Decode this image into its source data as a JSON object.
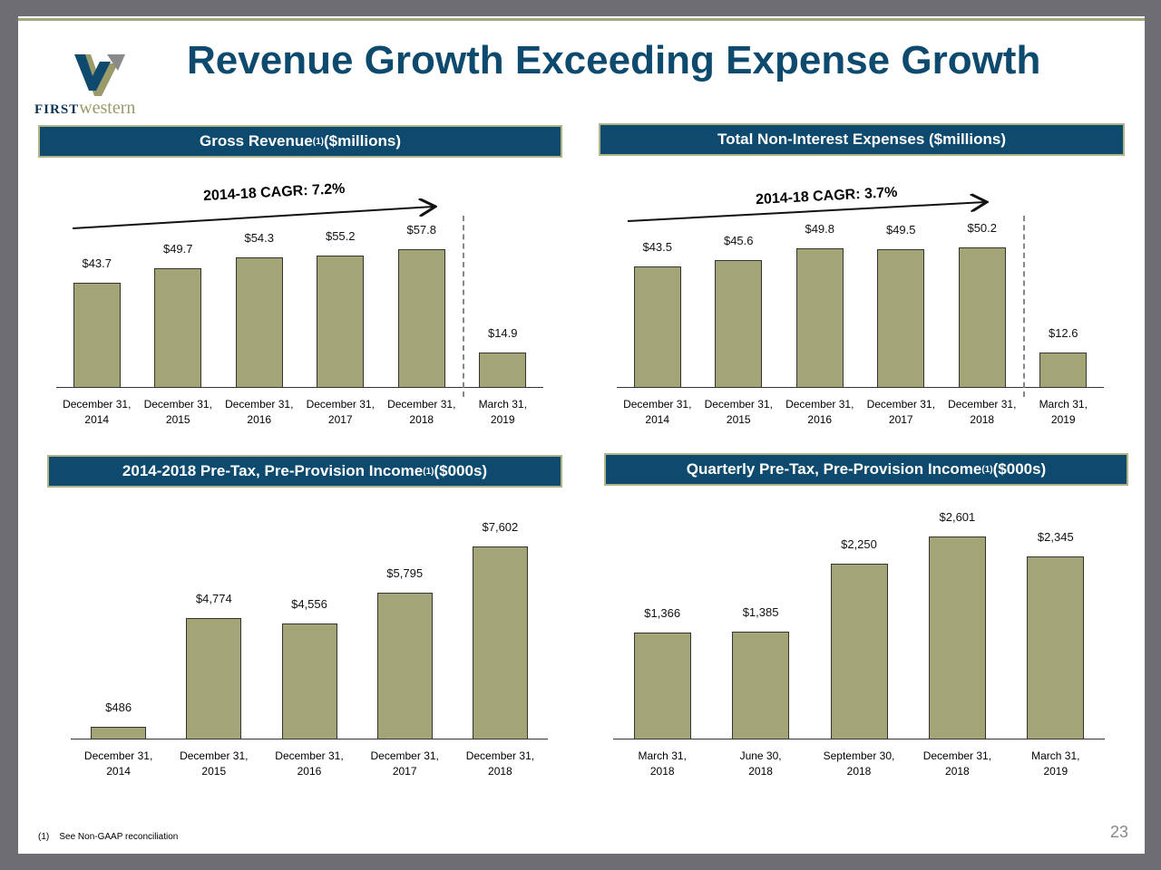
{
  "title": "Revenue Growth Exceeding Expense Growth",
  "logo": {
    "text_first": "FIRST",
    "text_western": "western"
  },
  "footnote": {
    "marker": "(1)",
    "text": "See Non-GAAP reconciliation"
  },
  "page_number": "23",
  "colors": {
    "bar": "#a3a577",
    "header": "#0d4a6e",
    "title": "#0d4a6e"
  },
  "chart_data": [
    {
      "type": "bar",
      "title": "Gross Revenue",
      "title_sup": "(1)",
      "title_suffix": " ($millions)",
      "annotation": "2014-18 CAGR: 7.2%",
      "categories": [
        "December 31,\n2014",
        "December 31,\n2015",
        "December 31,\n2016",
        "December 31,\n2017",
        "December 31,\n2018",
        "March 31,\n2019"
      ],
      "values": [
        43.7,
        49.7,
        54.3,
        55.2,
        57.8,
        14.9
      ],
      "labels": [
        "$43.7",
        "$49.7",
        "$54.3",
        "$55.2",
        "$57.8",
        "$14.9"
      ]
    },
    {
      "type": "bar",
      "title": "Total Non-Interest Expenses ($millions)",
      "title_sup": "",
      "title_suffix": "",
      "annotation": "2014-18 CAGR: 3.7%",
      "categories": [
        "December 31,\n2014",
        "December 31,\n2015",
        "December 31,\n2016",
        "December 31,\n2017",
        "December 31,\n2018",
        "March 31,\n2019"
      ],
      "values": [
        43.5,
        45.6,
        49.8,
        49.5,
        50.2,
        12.6
      ],
      "labels": [
        "$43.5",
        "$45.6",
        "$49.8",
        "$49.5",
        "$50.2",
        "$12.6"
      ]
    },
    {
      "type": "bar",
      "title": "2014-2018 Pre-Tax, Pre-Provision Income",
      "title_sup": "(1)",
      "title_suffix": " ($000s)",
      "categories": [
        "December 31,\n2014",
        "December 31,\n2015",
        "December 31,\n2016",
        "December 31,\n2017",
        "December 31,\n2018"
      ],
      "values": [
        486,
        4774,
        4556,
        5795,
        7602
      ],
      "labels": [
        "$486",
        "$4,774",
        "$4,556",
        "$5,795",
        "$7,602"
      ]
    },
    {
      "type": "bar",
      "title": "Quarterly Pre-Tax, Pre-Provision Income",
      "title_sup": "(1)",
      "title_suffix": " ($000s)",
      "categories": [
        "March 31,\n2018",
        "June 30,\n2018",
        "September 30,\n2018",
        "December 31,\n2018",
        "March 31,\n2019"
      ],
      "values": [
        1366,
        1385,
        2250,
        2601,
        2345
      ],
      "labels": [
        "$1,366",
        "$1,385",
        "$2,250",
        "$2,601",
        "$2,345"
      ]
    }
  ]
}
